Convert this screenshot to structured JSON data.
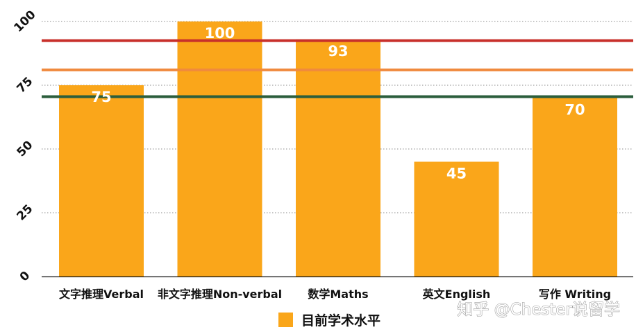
{
  "chart_data": {
    "type": "bar",
    "categories": [
      "文字推理Verbal",
      "非文字推理Non-verbal",
      "数学Maths",
      "英文English",
      "写作 Writing"
    ],
    "series": [
      {
        "name": "目前学术水平",
        "values": [
          75,
          100,
          93,
          45,
          70
        ],
        "color": "#FAA61A"
      }
    ],
    "data_labels": [
      "75",
      "100",
      "93",
      "45",
      "70"
    ],
    "ylim": [
      0,
      100
    ],
    "yticks": [
      0,
      25,
      50,
      75,
      100
    ],
    "ytick_labels": [
      "0",
      "25",
      "50",
      "75",
      "100"
    ],
    "ytick_rotation": -45,
    "grid": "dotted horizontal",
    "legend_position": "bottom-center",
    "reference_lines": [
      {
        "value": 92.5,
        "color": "#C8302B"
      },
      {
        "value": 81,
        "color": "#F08A3E"
      },
      {
        "value": 70.5,
        "color": "#2B5E3C"
      }
    ],
    "title": "",
    "xlabel": "",
    "ylabel": ""
  },
  "watermark": "知乎 @Chester说留学"
}
